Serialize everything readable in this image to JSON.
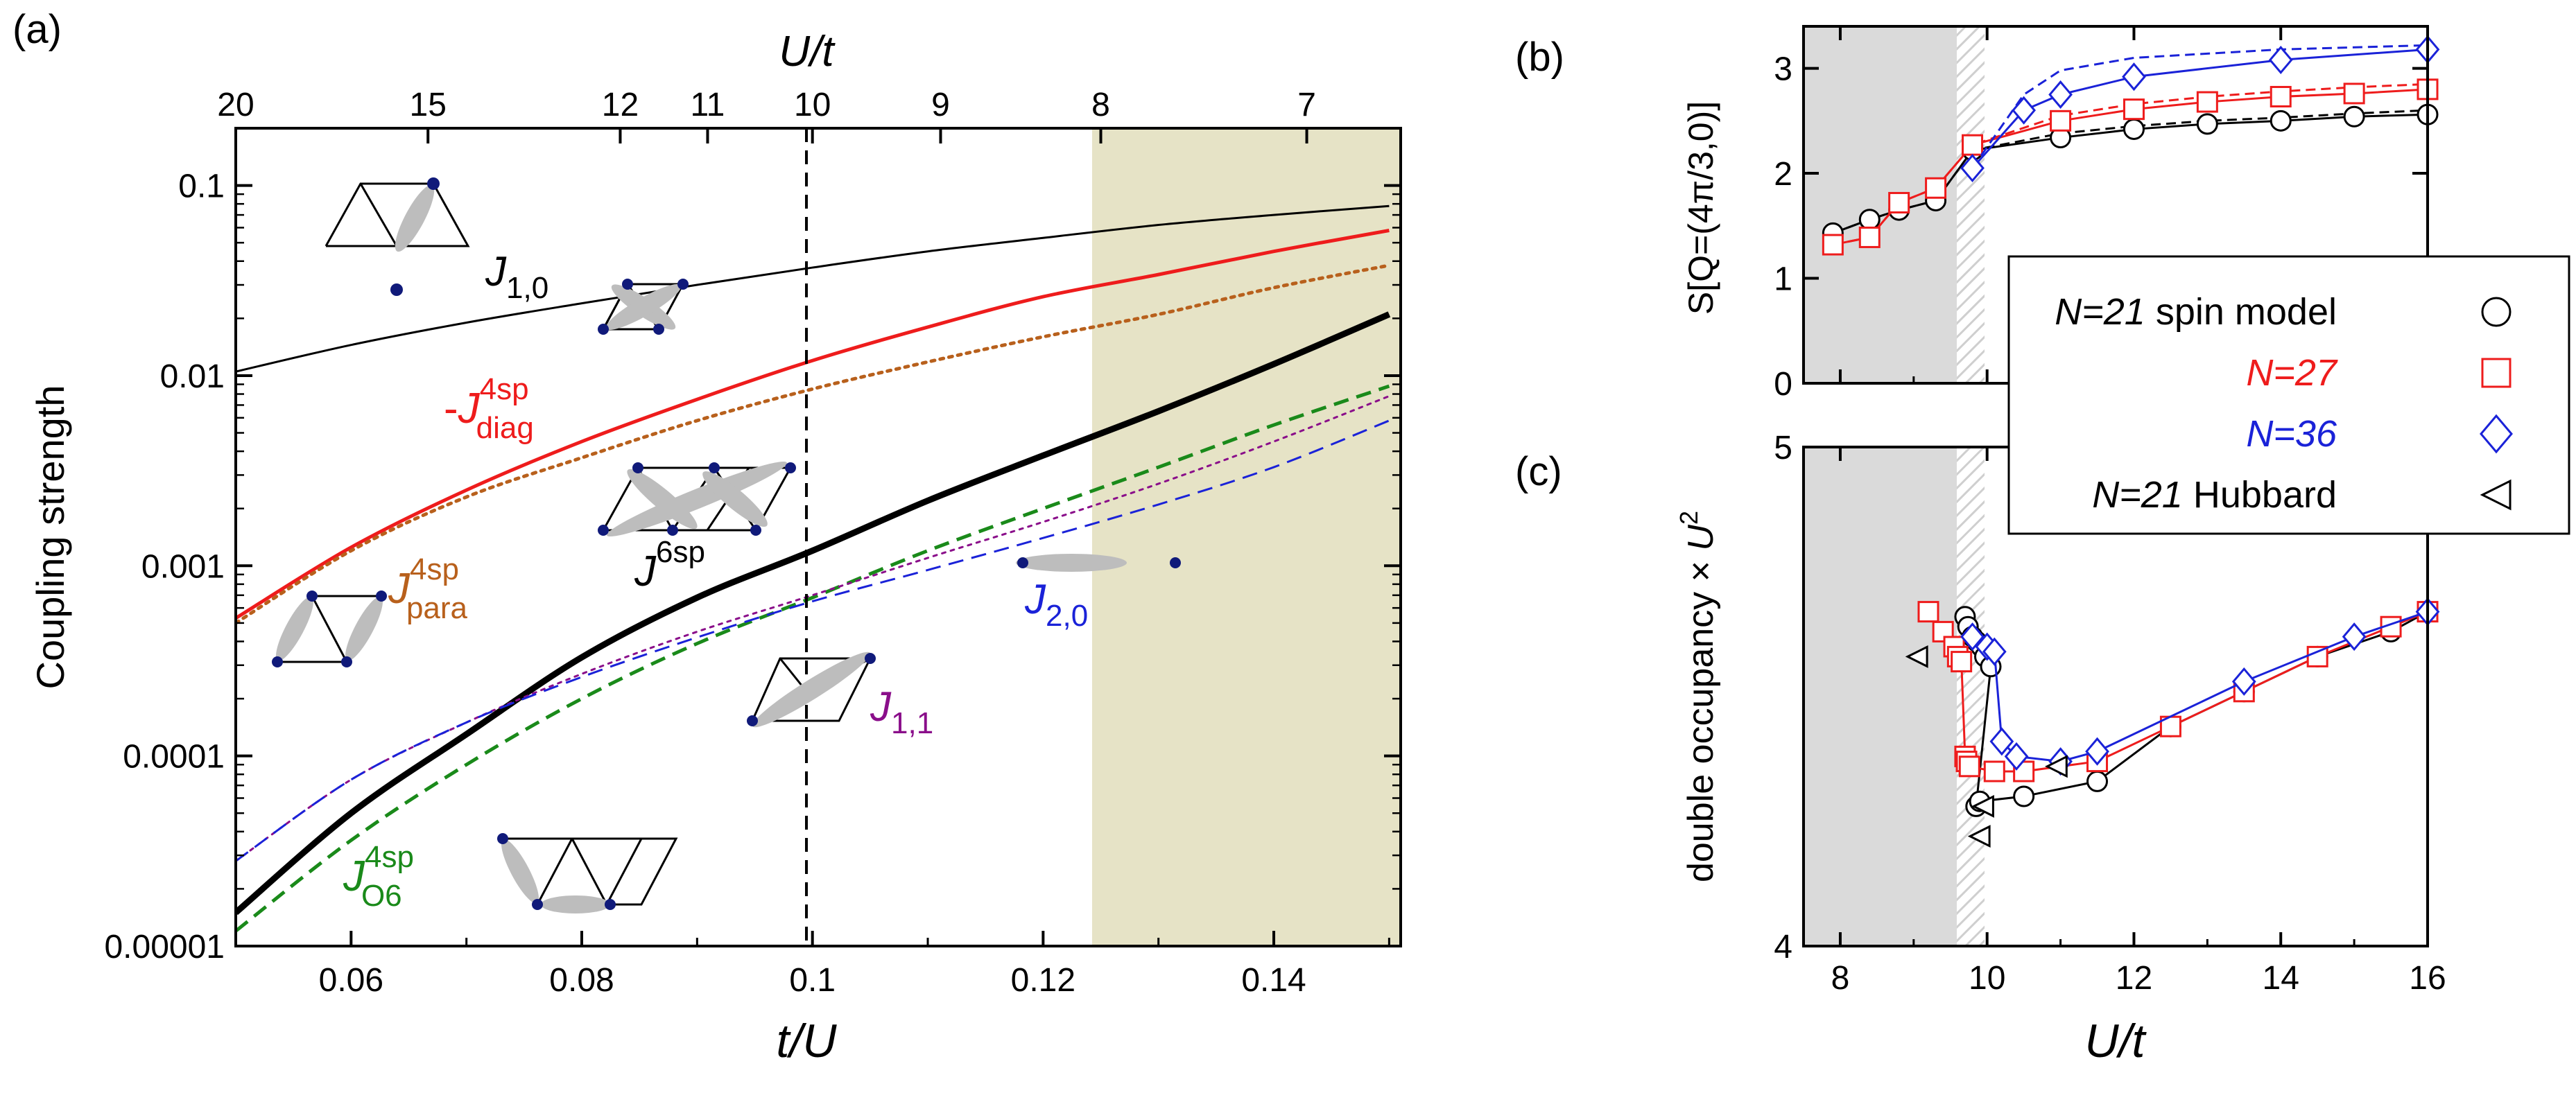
{
  "colors": {
    "black": "#000000",
    "red": "#ee1c1c",
    "brown": "#b8601c",
    "green": "#1a8a1a",
    "purple": "#8a0e8a",
    "blue": "#1a22d8",
    "navy": "#101a7a",
    "shade_grey": "#dadada",
    "shade_olive": "#e6e3c6",
    "bond_grey": "#bdbdbd"
  },
  "panels": {
    "a": "(a)",
    "b": "(b)",
    "c": "(c)"
  },
  "chart_data": [
    {
      "id": "a",
      "type": "line",
      "title": "",
      "xlabel": "t/U",
      "ylabel": "Coupling strength",
      "top_xlabel": "U/t",
      "xscale": "linear",
      "yscale": "log",
      "xlim": [
        0.05,
        0.151
      ],
      "ylim": [
        1e-05,
        0.2
      ],
      "xticks": [
        0.06,
        0.08,
        0.1,
        0.12,
        0.14
      ],
      "xtick_labels": [
        "0.06",
        "0.08",
        "0.1",
        "0.12",
        "0.14"
      ],
      "yticks": [
        1e-05,
        0.0001,
        0.001,
        0.01,
        0.1
      ],
      "ytick_labels": [
        "0.00001",
        "0.0001",
        "0.001",
        "0.01",
        "0.1"
      ],
      "top_ticks": [
        20,
        15,
        12,
        11,
        10,
        9,
        8,
        7
      ],
      "top_tick_labels": [
        "20",
        "15",
        "12",
        "11",
        "10",
        "9",
        "8",
        "7"
      ],
      "shaded_region_x": [
        0.125,
        0.151
      ],
      "vertical_line_x": 0.1,
      "x": [
        0.05,
        0.06,
        0.07,
        0.08,
        0.09,
        0.1,
        0.11,
        0.12,
        0.13,
        0.14,
        0.15
      ],
      "series": [
        {
          "name": "J_{1,0}",
          "label": "J",
          "sub": "1,0",
          "sup": "",
          "prefix": "",
          "color": "black",
          "style": "solid",
          "weight": "thin",
          "values": [
            0.0105,
            0.0145,
            0.019,
            0.024,
            0.03,
            0.037,
            0.045,
            0.053,
            0.062,
            0.07,
            0.078
          ]
        },
        {
          "name": "-J_{diag}^{4sp}",
          "label": "J",
          "sub": "diag",
          "sup": "4sp",
          "prefix": "-",
          "color": "red",
          "style": "solid",
          "weight": "medium",
          "values": [
            0.00053,
            0.00125,
            0.0025,
            0.0045,
            0.0075,
            0.012,
            0.018,
            0.026,
            0.034,
            0.045,
            0.058
          ]
        },
        {
          "name": "J_{para}^{4sp}",
          "label": "J",
          "sub": "para",
          "sup": "4sp",
          "prefix": "",
          "color": "brown",
          "style": "dotted",
          "weight": "medium",
          "values": [
            0.0005,
            0.0012,
            0.0023,
            0.0037,
            0.0058,
            0.0085,
            0.0118,
            0.016,
            0.021,
            0.029,
            0.038
          ]
        },
        {
          "name": "J^{6sp}",
          "label": "J",
          "sub": "",
          "sup": "6sp",
          "prefix": "",
          "color": "black",
          "style": "solid",
          "weight": "thick",
          "values": [
            1.5e-05,
            5e-05,
            0.00013,
            0.00033,
            0.00068,
            0.0012,
            0.0022,
            0.0038,
            0.0065,
            0.0115,
            0.021
          ]
        },
        {
          "name": "J_{O6}^{4sp}",
          "label": "J",
          "sub": "O6",
          "sup": "4sp",
          "prefix": "",
          "color": "green",
          "style": "dashed",
          "weight": "medium",
          "values": [
            1.2e-05,
            3.6e-05,
            9e-05,
            0.0002,
            0.00039,
            0.00068,
            0.0012,
            0.002,
            0.0033,
            0.0055,
            0.0088
          ]
        },
        {
          "name": "J_{1,1}",
          "label": "J",
          "sub": "1,1",
          "sup": "",
          "prefix": "",
          "color": "purple",
          "style": "dotted",
          "weight": "thin",
          "values": [
            2.8e-05,
            7.5e-05,
            0.00015,
            0.00027,
            0.00045,
            0.0007,
            0.0011,
            0.0017,
            0.0027,
            0.0045,
            0.0078
          ]
        },
        {
          "name": "J_{2,0}",
          "label": "J",
          "sub": "2,0",
          "sup": "",
          "prefix": "",
          "color": "blue",
          "style": "dashed",
          "weight": "thin",
          "values": [
            2.8e-05,
            7.5e-05,
            0.00015,
            0.00026,
            0.00042,
            0.00065,
            0.00095,
            0.0014,
            0.0021,
            0.0033,
            0.0058
          ]
        }
      ]
    },
    {
      "id": "b",
      "type": "line",
      "ylabel": "S[Q=(4π/3,0)]",
      "xlim": [
        7.5,
        16
      ],
      "ylim": [
        0,
        3.4
      ],
      "yticks": [
        0,
        1,
        2,
        3
      ],
      "ytick_labels": [
        "0",
        "1",
        "2",
        "3"
      ],
      "shaded_region_x": [
        7.5,
        9.7
      ],
      "hatched_region_x": [
        9.7,
        10.1
      ],
      "series": [
        {
          "name": "N=21 spin model",
          "color": "black",
          "marker": "circle",
          "x": [
            7.9,
            8.4,
            8.8,
            9.3,
            9.8,
            11,
            12,
            13,
            14,
            15,
            16
          ],
          "y": [
            1.43,
            1.56,
            1.65,
            1.74,
            2.22,
            2.34,
            2.42,
            2.47,
            2.5,
            2.54,
            2.56
          ],
          "dashed_y": [
            1.43,
            1.56,
            1.65,
            1.74,
            2.22,
            2.38,
            2.45,
            2.5,
            2.53,
            2.57,
            2.6
          ]
        },
        {
          "name": "N=27",
          "color": "red",
          "marker": "square",
          "x": [
            7.9,
            8.4,
            8.8,
            9.3,
            9.8,
            11,
            12,
            13,
            14,
            15,
            16
          ],
          "y": [
            1.32,
            1.39,
            1.72,
            1.86,
            2.27,
            2.5,
            2.61,
            2.68,
            2.73,
            2.76,
            2.8
          ],
          "dashed_y": [
            1.32,
            1.39,
            1.72,
            1.86,
            2.27,
            2.55,
            2.66,
            2.73,
            2.78,
            2.82,
            2.85
          ]
        },
        {
          "name": "N=36",
          "color": "blue",
          "marker": "diamond",
          "x": [
            9.8,
            10.5,
            11,
            12,
            14,
            16
          ],
          "y": [
            2.05,
            2.6,
            2.75,
            2.92,
            3.08,
            3.18
          ],
          "dashed_y": [
            2.05,
            2.75,
            2.98,
            3.1,
            3.18,
            3.22
          ]
        }
      ]
    },
    {
      "id": "c",
      "type": "line",
      "xlabel": "U/t",
      "ylabel": "double occupancy × U²",
      "xlim": [
        7.5,
        16
      ],
      "ylim": [
        4,
        5
      ],
      "xticks": [
        8,
        10,
        12,
        14,
        16
      ],
      "xtick_labels": [
        "8",
        "10",
        "12",
        "14",
        "16"
      ],
      "yticks": [
        4,
        5
      ],
      "ytick_labels": [
        "4",
        "5"
      ],
      "shaded_region_x": [
        7.5,
        9.7
      ],
      "hatched_region_x": [
        9.7,
        10.1
      ],
      "series": [
        {
          "name": "N=21 spin model",
          "color": "black",
          "marker": "circle",
          "x": [
            9.7,
            9.74,
            9.8,
            9.86,
            9.92,
            9.97,
            10.05,
            9.85,
            9.9,
            10.5,
            11.5,
            12.5,
            13.5,
            14.5,
            15.5,
            16
          ],
          "y": [
            4.66,
            4.64,
            4.62,
            4.61,
            4.6,
            4.58,
            4.56,
            4.28,
            4.29,
            4.3,
            4.33,
            4.44,
            4.51,
            4.58,
            4.63,
            4.67
          ]
        },
        {
          "name": "N=27",
          "color": "red",
          "marker": "square",
          "x": [
            9.2,
            9.4,
            9.55,
            9.6,
            9.65,
            9.7,
            9.72,
            9.76,
            10.1,
            10.5,
            11.5,
            12.5,
            13.5,
            14.5,
            15.5,
            16
          ],
          "y": [
            4.67,
            4.63,
            4.6,
            4.58,
            4.57,
            4.38,
            4.37,
            4.36,
            4.35,
            4.35,
            4.37,
            4.44,
            4.51,
            4.58,
            4.64,
            4.67
          ]
        },
        {
          "name": "N=36",
          "color": "blue",
          "marker": "diamond",
          "x": [
            9.8,
            10,
            10.1,
            10.2,
            10.4,
            11,
            11.5,
            13.5,
            15,
            16
          ],
          "y": [
            4.62,
            4.6,
            4.59,
            4.41,
            4.38,
            4.37,
            4.39,
            4.53,
            4.62,
            4.67
          ]
        },
        {
          "name": "N=21 Hubbard",
          "color": "black",
          "marker": "triangle-left",
          "x": [
            9.05,
            9.9,
            9.95,
            10.95
          ],
          "y": [
            4.58,
            4.22,
            4.28,
            4.36
          ]
        }
      ]
    }
  ],
  "legend": [
    {
      "italic": "N=21",
      "rest": " spin model",
      "color": "black",
      "marker": "circle"
    },
    {
      "italic": "N=27",
      "rest": "",
      "color": "red",
      "marker": "square"
    },
    {
      "italic": "N=36",
      "rest": "",
      "color": "blue",
      "marker": "diamond"
    },
    {
      "italic": "N=21",
      "rest": " Hubbard",
      "color": "black",
      "marker": "triangle-left"
    }
  ]
}
